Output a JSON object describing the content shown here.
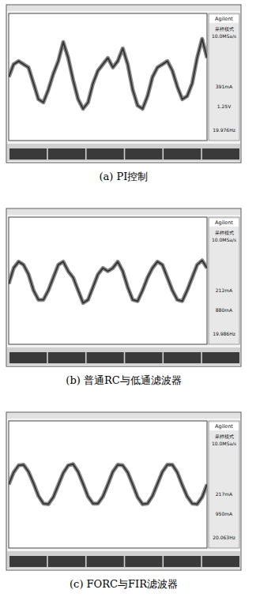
{
  "chart_data": [
    {
      "type": "line",
      "title": "(a) PI控制",
      "color": "#333333",
      "grid": false,
      "tick_labels": false,
      "xlim": [
        0,
        40
      ],
      "ylim": [
        -1,
        1
      ],
      "annotations": [
        "Agilent",
        "采样模式",
        "10.0MSa/s",
        "391mA",
        "1.25V",
        "19.976Hz"
      ],
      "x": [
        0,
        1,
        2,
        3,
        4,
        5,
        6,
        7,
        8,
        9,
        10,
        11,
        12,
        13,
        14,
        15,
        16,
        17,
        18,
        19,
        20,
        21,
        22,
        23,
        24,
        25,
        26,
        27,
        28,
        29,
        30,
        31,
        32,
        33,
        34,
        35,
        36,
        37,
        38,
        39,
        40
      ],
      "values": [
        0.0,
        0.2,
        0.25,
        0.2,
        0.15,
        -0.1,
        -0.35,
        -0.4,
        -0.2,
        0.05,
        0.25,
        0.55,
        0.3,
        -0.05,
        -0.35,
        -0.5,
        -0.4,
        -0.1,
        0.1,
        0.2,
        0.3,
        0.15,
        0.25,
        0.45,
        0.2,
        -0.2,
        -0.45,
        -0.5,
        -0.3,
        0.0,
        0.15,
        0.2,
        0.25,
        0.1,
        -0.15,
        -0.35,
        -0.3,
        -0.1,
        0.3,
        0.6,
        0.3
      ]
    },
    {
      "type": "line",
      "title": "(b) 普通RC与低通滤波器",
      "color": "#333333",
      "grid": false,
      "tick_labels": false,
      "xlim": [
        0,
        40
      ],
      "ylim": [
        -1,
        1
      ],
      "annotations": [
        "Agilent",
        "采样模式",
        "10.0MSa/s",
        "212mA",
        "880mA",
        "19.986Hz"
      ],
      "x": [
        0,
        1,
        2,
        3,
        4,
        5,
        6,
        7,
        8,
        9,
        10,
        11,
        12,
        13,
        14,
        15,
        16,
        17,
        18,
        19,
        20,
        21,
        22,
        23,
        24,
        25,
        26,
        27,
        28,
        29,
        30,
        31,
        32,
        33,
        34,
        35,
        36,
        37,
        38,
        39,
        40
      ],
      "values": [
        -0.05,
        0.2,
        0.3,
        0.25,
        0.1,
        -0.15,
        -0.3,
        -0.3,
        -0.15,
        0.05,
        0.25,
        0.3,
        0.15,
        0.05,
        -0.15,
        -0.35,
        -0.3,
        -0.1,
        0.1,
        0.2,
        0.15,
        0.2,
        0.3,
        0.15,
        -0.1,
        -0.3,
        -0.32,
        -0.15,
        0.05,
        0.2,
        0.3,
        0.25,
        0.05,
        -0.15,
        -0.3,
        -0.32,
        -0.15,
        0.05,
        0.25,
        0.32,
        0.2
      ]
    },
    {
      "type": "line",
      "title": "(c) FORC与FIR滤波器",
      "color": "#333333",
      "grid": false,
      "tick_labels": false,
      "xlim": [
        0,
        40
      ],
      "ylim": [
        -1,
        1
      ],
      "annotations": [
        "Agilent",
        "采样模式",
        "10.0MSa/s",
        "217mA",
        "950mA",
        "20.063Hz"
      ],
      "x": [
        0,
        1,
        2,
        3,
        4,
        5,
        6,
        7,
        8,
        9,
        10,
        11,
        12,
        13,
        14,
        15,
        16,
        17,
        18,
        19,
        20,
        21,
        22,
        23,
        24,
        25,
        26,
        27,
        28,
        29,
        30,
        31,
        32,
        33,
        34,
        35,
        36,
        37,
        38,
        39,
        40
      ],
      "values": [
        0.0,
        0.19,
        0.3,
        0.31,
        0.2,
        0.02,
        -0.18,
        -0.3,
        -0.31,
        -0.2,
        -0.01,
        0.18,
        0.3,
        0.32,
        0.2,
        0.01,
        -0.19,
        -0.3,
        -0.3,
        -0.19,
        0.0,
        0.2,
        0.31,
        0.3,
        0.19,
        0.0,
        -0.2,
        -0.31,
        -0.3,
        -0.18,
        0.01,
        0.2,
        0.31,
        0.31,
        0.19,
        -0.01,
        -0.19,
        -0.3,
        -0.31,
        -0.2,
        0.0
      ]
    }
  ]
}
